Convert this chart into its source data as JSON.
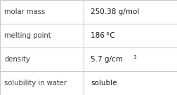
{
  "rows": [
    {
      "label": "molar mass",
      "value": "250.38 g/mol",
      "sup": null
    },
    {
      "label": "melting point",
      "value": "186 °C",
      "sup": null
    },
    {
      "label": "density",
      "value": "5.7 g/cm",
      "sup": "3"
    },
    {
      "label": "solubility in water",
      "value": "soluble",
      "sup": null
    }
  ],
  "col_split": 0.472,
  "bg": "#ffffff",
  "line_color": "#c8c8c8",
  "label_color": "#404040",
  "value_color": "#1a1a1a",
  "label_fontsize": 7.2,
  "value_fontsize": 7.5,
  "sup_fontsize": 5.2
}
